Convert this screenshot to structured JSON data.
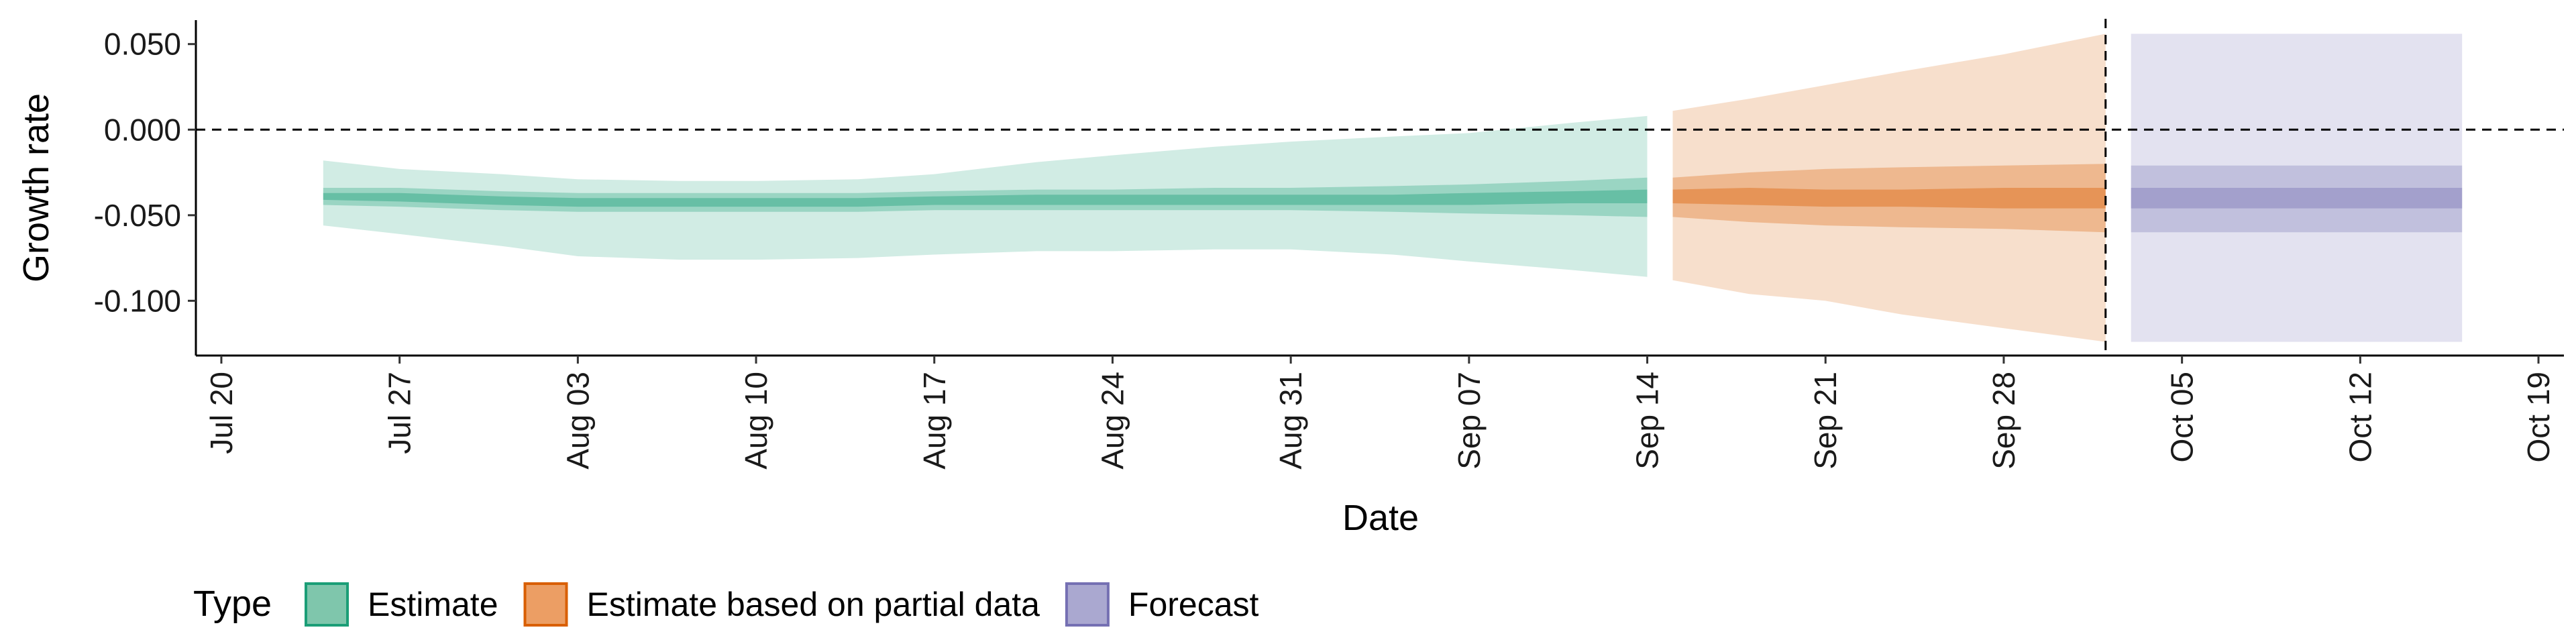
{
  "chart_data": {
    "type": "area",
    "xlabel": "Date",
    "ylabel": "Growth rate",
    "xlim": [
      "2020-07-19",
      "2020-10-20"
    ],
    "ylim": [
      -0.132,
      0.064
    ],
    "y_ticks": [
      0.05,
      0.0,
      -0.05,
      -0.1
    ],
    "y_tick_labels": [
      "0.050",
      "0.000",
      "-0.050",
      "-0.100"
    ],
    "x_ticks": [
      "2020-07-20",
      "2020-07-27",
      "2020-08-03",
      "2020-08-10",
      "2020-08-17",
      "2020-08-24",
      "2020-08-31",
      "2020-09-07",
      "2020-09-14",
      "2020-09-21",
      "2020-09-28",
      "2020-10-05",
      "2020-10-12",
      "2020-10-19"
    ],
    "x_tick_labels": [
      "Jul 20",
      "Jul 27",
      "Aug 03",
      "Aug 10",
      "Aug 17",
      "Aug 24",
      "Aug 31",
      "Sep 07",
      "Sep 14",
      "Sep 21",
      "Sep 28",
      "Oct 05",
      "Oct 12",
      "Oct 19"
    ],
    "reference_lines": {
      "horizontal_y": 0.0,
      "vertical_date": "2020-10-02"
    },
    "grid": false,
    "legend": {
      "title": "Type",
      "position": "bottom-left",
      "entries": [
        {
          "label": "Estimate",
          "fill": "#7fc6ac",
          "stroke": "#1b9e77"
        },
        {
          "label": "Estimate based on partial data",
          "fill": "#ec9e64",
          "stroke": "#d95f02"
        },
        {
          "label": "Forecast",
          "fill": "#aaa8d0",
          "stroke": "#7570b3"
        }
      ]
    },
    "series": [
      {
        "name": "Estimate",
        "color": "#1b9e77",
        "points": [
          {
            "x": "2020-07-24",
            "median": -0.039,
            "lower_90": -0.056,
            "upper_90": -0.018,
            "lower_50": -0.044,
            "upper_50": -0.034,
            "lower_20": -0.041,
            "upper_20": -0.037
          },
          {
            "x": "2020-07-27",
            "median": -0.039,
            "lower_90": -0.061,
            "upper_90": -0.023,
            "lower_50": -0.045,
            "upper_50": -0.034,
            "lower_20": -0.042,
            "upper_20": -0.037
          },
          {
            "x": "2020-07-31",
            "median": -0.041,
            "lower_90": -0.068,
            "upper_90": -0.026,
            "lower_50": -0.047,
            "upper_50": -0.036,
            "lower_20": -0.044,
            "upper_20": -0.039
          },
          {
            "x": "2020-08-03",
            "median": -0.042,
            "lower_90": -0.074,
            "upper_90": -0.029,
            "lower_50": -0.048,
            "upper_50": -0.037,
            "lower_20": -0.045,
            "upper_20": -0.04
          },
          {
            "x": "2020-08-07",
            "median": -0.042,
            "lower_90": -0.076,
            "upper_90": -0.03,
            "lower_50": -0.048,
            "upper_50": -0.037,
            "lower_20": -0.045,
            "upper_20": -0.04
          },
          {
            "x": "2020-08-10",
            "median": -0.042,
            "lower_90": -0.076,
            "upper_90": -0.03,
            "lower_50": -0.048,
            "upper_50": -0.037,
            "lower_20": -0.045,
            "upper_20": -0.04
          },
          {
            "x": "2020-08-14",
            "median": -0.042,
            "lower_90": -0.075,
            "upper_90": -0.029,
            "lower_50": -0.048,
            "upper_50": -0.037,
            "lower_20": -0.045,
            "upper_20": -0.04
          },
          {
            "x": "2020-08-17",
            "median": -0.041,
            "lower_90": -0.073,
            "upper_90": -0.026,
            "lower_50": -0.047,
            "upper_50": -0.036,
            "lower_20": -0.044,
            "upper_20": -0.039
          },
          {
            "x": "2020-08-21",
            "median": -0.041,
            "lower_90": -0.071,
            "upper_90": -0.019,
            "lower_50": -0.047,
            "upper_50": -0.035,
            "lower_20": -0.044,
            "upper_20": -0.038
          },
          {
            "x": "2020-08-24",
            "median": -0.041,
            "lower_90": -0.071,
            "upper_90": -0.015,
            "lower_50": -0.047,
            "upper_50": -0.035,
            "lower_20": -0.044,
            "upper_20": -0.038
          },
          {
            "x": "2020-08-28",
            "median": -0.041,
            "lower_90": -0.07,
            "upper_90": -0.01,
            "lower_50": -0.047,
            "upper_50": -0.034,
            "lower_20": -0.044,
            "upper_20": -0.038
          },
          {
            "x": "2020-08-31",
            "median": -0.041,
            "lower_90": -0.07,
            "upper_90": -0.007,
            "lower_50": -0.047,
            "upper_50": -0.034,
            "lower_20": -0.044,
            "upper_20": -0.038
          },
          {
            "x": "2020-09-04",
            "median": -0.041,
            "lower_90": -0.073,
            "upper_90": -0.004,
            "lower_50": -0.048,
            "upper_50": -0.033,
            "lower_20": -0.044,
            "upper_20": -0.038
          },
          {
            "x": "2020-09-07",
            "median": -0.041,
            "lower_90": -0.077,
            "upper_90": -0.002,
            "lower_50": -0.049,
            "upper_50": -0.032,
            "lower_20": -0.044,
            "upper_20": -0.037
          },
          {
            "x": "2020-09-11",
            "median": -0.04,
            "lower_90": -0.082,
            "upper_90": 0.004,
            "lower_50": -0.05,
            "upper_50": -0.03,
            "lower_20": -0.043,
            "upper_20": -0.036
          },
          {
            "x": "2020-09-14",
            "median": -0.039,
            "lower_90": -0.086,
            "upper_90": 0.008,
            "lower_50": -0.051,
            "upper_50": -0.028,
            "lower_20": -0.043,
            "upper_20": -0.035
          }
        ]
      },
      {
        "name": "Estimate based on partial data",
        "color": "#d95f02",
        "points": [
          {
            "x": "2020-09-15",
            "median": -0.039,
            "lower_90": -0.088,
            "upper_90": 0.011,
            "lower_50": -0.051,
            "upper_50": -0.028,
            "lower_20": -0.043,
            "upper_20": -0.035
          },
          {
            "x": "2020-09-18",
            "median": -0.039,
            "lower_90": -0.096,
            "upper_90": 0.018,
            "lower_50": -0.054,
            "upper_50": -0.025,
            "lower_20": -0.044,
            "upper_20": -0.034
          },
          {
            "x": "2020-09-21",
            "median": -0.04,
            "lower_90": -0.1,
            "upper_90": 0.026,
            "lower_50": -0.056,
            "upper_50": -0.023,
            "lower_20": -0.045,
            "upper_20": -0.035
          },
          {
            "x": "2020-09-24",
            "median": -0.04,
            "lower_90": -0.108,
            "upper_90": 0.034,
            "lower_50": -0.057,
            "upper_50": -0.022,
            "lower_20": -0.045,
            "upper_20": -0.035
          },
          {
            "x": "2020-09-28",
            "median": -0.04,
            "lower_90": -0.116,
            "upper_90": 0.044,
            "lower_50": -0.058,
            "upper_50": -0.021,
            "lower_20": -0.046,
            "upper_20": -0.034
          },
          {
            "x": "2020-10-02",
            "median": -0.04,
            "lower_90": -0.124,
            "upper_90": 0.056,
            "lower_50": -0.06,
            "upper_50": -0.02,
            "lower_20": -0.046,
            "upper_20": -0.034
          }
        ]
      },
      {
        "name": "Forecast",
        "color": "#7570b3",
        "points": [
          {
            "x": "2020-10-03",
            "median": -0.04,
            "lower_90": -0.124,
            "upper_90": 0.056,
            "lower_50": -0.06,
            "upper_50": -0.021,
            "lower_20": -0.046,
            "upper_20": -0.034
          },
          {
            "x": "2020-10-16",
            "median": -0.04,
            "lower_90": -0.124,
            "upper_90": 0.056,
            "lower_50": -0.06,
            "upper_50": -0.021,
            "lower_20": -0.046,
            "upper_20": -0.034
          }
        ]
      }
    ]
  }
}
